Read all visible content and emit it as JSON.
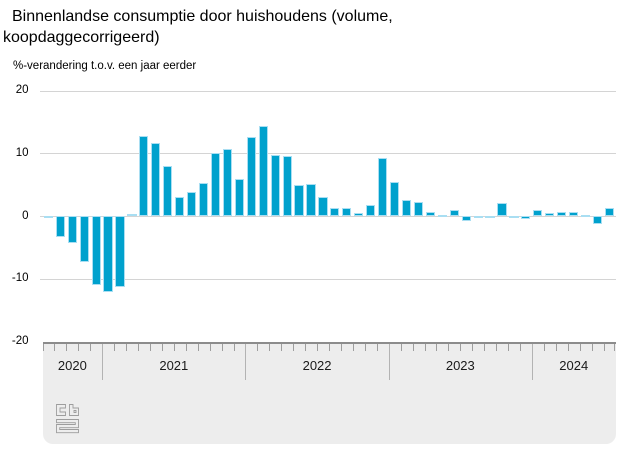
{
  "title": "Binnenlandse consumptie door huishoudens (volume, koopdaggecorrigeerd)",
  "subtitle": "%-verandering t.o.v. een jaar eerder",
  "chart_data": {
    "type": "bar",
    "title": "Binnenlandse consumptie door huishoudens (volume, koopdaggecorrigeerd)",
    "ylabel": "%-verandering t.o.v. een jaar eerder",
    "unit": "%",
    "ylim": [
      -20,
      20
    ],
    "yticks": [
      "20",
      "10",
      "0",
      "-10",
      "-20"
    ],
    "ytick_values": [
      20,
      10,
      0,
      -10,
      -20
    ],
    "grid": true,
    "bar_color": "#00a1cd",
    "bar_border_color": "#a9def2",
    "x": [
      "2020-08",
      "2020-09",
      "2020-10",
      "2020-11",
      "2020-12",
      "2021-01",
      "2021-02",
      "2021-03",
      "2021-04",
      "2021-05",
      "2021-06",
      "2021-07",
      "2021-08",
      "2021-09",
      "2021-10",
      "2021-11",
      "2021-12",
      "2022-01",
      "2022-02",
      "2022-03",
      "2022-04",
      "2022-05",
      "2022-06",
      "2022-07",
      "2022-08",
      "2022-09",
      "2022-10",
      "2022-11",
      "2022-12",
      "2023-01",
      "2023-02",
      "2023-03",
      "2023-04",
      "2023-05",
      "2023-06",
      "2023-07",
      "2023-08",
      "2023-09",
      "2023-10",
      "2023-11",
      "2023-12",
      "2024-01",
      "2024-02",
      "2024-03",
      "2024-04",
      "2024-05",
      "2024-06",
      "2024-07"
    ],
    "values": [
      -0.3,
      -3.3,
      -4.3,
      -7.4,
      -11.0,
      -12.2,
      -11.4,
      0.3,
      12.7,
      11.7,
      8.0,
      3.0,
      3.9,
      5.3,
      10.0,
      10.7,
      5.9,
      12.6,
      14.3,
      9.8,
      9.5,
      4.9,
      5.1,
      3.0,
      1.2,
      1.3,
      0.5,
      1.7,
      9.2,
      5.4,
      2.6,
      2.3,
      0.7,
      0.2,
      1.0,
      -0.8,
      -0.2,
      -0.3,
      2.0,
      -0.2,
      -0.5,
      1.0,
      0.4,
      0.6,
      0.6,
      0.2,
      -1.3,
      1.2
    ],
    "year_segments": [
      {
        "label": "2020",
        "months": 5
      },
      {
        "label": "2021",
        "months": 12
      },
      {
        "label": "2022",
        "months": 12
      },
      {
        "label": "2023",
        "months": 12
      },
      {
        "label": "2024",
        "months": 7
      }
    ],
    "legend": []
  },
  "footer": {
    "logo": "cbs-logo"
  }
}
